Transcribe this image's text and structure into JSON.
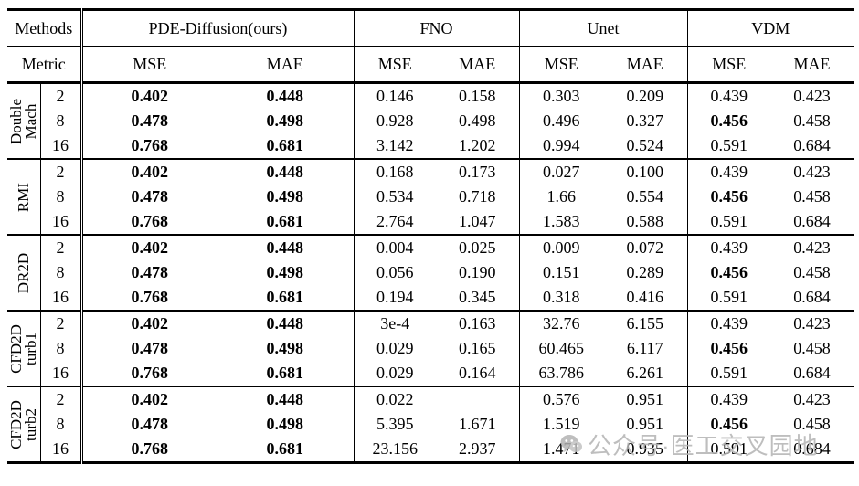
{
  "watermark": {
    "text": "公众号·医工交叉园地",
    "color": "#b3b3b3",
    "icon": "wechat-icon"
  },
  "table": {
    "header": {
      "methods_label": "Methods",
      "metric_label": "Metric",
      "method_groups": [
        {
          "name": "PDE-Diffusion(ours)"
        },
        {
          "name": "FNO"
        },
        {
          "name": "Unet"
        },
        {
          "name": "VDM"
        }
      ],
      "metric_cols": [
        "MSE",
        "MAE"
      ]
    },
    "groups": [
      {
        "id": "double-mach",
        "label_lines": [
          "Double",
          "Mach"
        ],
        "rows": [
          {
            "k": "2",
            "cells": [
              {
                "v": "0.402",
                "b": true
              },
              {
                "v": "0.448",
                "b": true
              },
              {
                "v": "0.146",
                "b": false
              },
              {
                "v": "0.158",
                "b": false
              },
              {
                "v": "0.303",
                "b": false
              },
              {
                "v": "0.209",
                "b": false
              },
              {
                "v": "0.439",
                "b": false
              },
              {
                "v": "0.423",
                "b": false
              }
            ]
          },
          {
            "k": "8",
            "cells": [
              {
                "v": "0.478",
                "b": true
              },
              {
                "v": "0.498",
                "b": true
              },
              {
                "v": "0.928",
                "b": false
              },
              {
                "v": "0.498",
                "b": false
              },
              {
                "v": "0.496",
                "b": false
              },
              {
                "v": "0.327",
                "b": false
              },
              {
                "v": "0.456",
                "b": true
              },
              {
                "v": "0.458",
                "b": false
              }
            ]
          },
          {
            "k": "16",
            "cells": [
              {
                "v": "0.768",
                "b": true
              },
              {
                "v": "0.681",
                "b": true
              },
              {
                "v": "3.142",
                "b": false
              },
              {
                "v": "1.202",
                "b": false
              },
              {
                "v": "0.994",
                "b": false
              },
              {
                "v": "0.524",
                "b": false
              },
              {
                "v": "0.591",
                "b": false
              },
              {
                "v": "0.684",
                "b": false
              }
            ]
          }
        ]
      },
      {
        "id": "rmi",
        "label_lines": [
          "RMI"
        ],
        "rows": [
          {
            "k": "2",
            "cells": [
              {
                "v": "0.402",
                "b": true
              },
              {
                "v": "0.448",
                "b": true
              },
              {
                "v": "0.168",
                "b": false
              },
              {
                "v": "0.173",
                "b": false
              },
              {
                "v": "0.027",
                "b": false
              },
              {
                "v": "0.100",
                "b": false
              },
              {
                "v": "0.439",
                "b": false
              },
              {
                "v": "0.423",
                "b": false
              }
            ]
          },
          {
            "k": "8",
            "cells": [
              {
                "v": "0.478",
                "b": true
              },
              {
                "v": "0.498",
                "b": true
              },
              {
                "v": "0.534",
                "b": false
              },
              {
                "v": "0.718",
                "b": false
              },
              {
                "v": "1.66",
                "b": false
              },
              {
                "v": "0.554",
                "b": false
              },
              {
                "v": "0.456",
                "b": true
              },
              {
                "v": "0.458",
                "b": false
              }
            ]
          },
          {
            "k": "16",
            "cells": [
              {
                "v": "0.768",
                "b": true
              },
              {
                "v": "0.681",
                "b": true
              },
              {
                "v": "2.764",
                "b": false
              },
              {
                "v": "1.047",
                "b": false
              },
              {
                "v": "1.583",
                "b": false
              },
              {
                "v": "0.588",
                "b": false
              },
              {
                "v": "0.591",
                "b": false
              },
              {
                "v": "0.684",
                "b": false
              }
            ]
          }
        ]
      },
      {
        "id": "dr2d",
        "label_lines": [
          "DR2D"
        ],
        "rows": [
          {
            "k": "2",
            "cells": [
              {
                "v": "0.402",
                "b": true
              },
              {
                "v": "0.448",
                "b": true
              },
              {
                "v": "0.004",
                "b": false
              },
              {
                "v": "0.025",
                "b": false
              },
              {
                "v": "0.009",
                "b": false
              },
              {
                "v": "0.072",
                "b": false
              },
              {
                "v": "0.439",
                "b": false
              },
              {
                "v": "0.423",
                "b": false
              }
            ]
          },
          {
            "k": "8",
            "cells": [
              {
                "v": "0.478",
                "b": true
              },
              {
                "v": "0.498",
                "b": true
              },
              {
                "v": "0.056",
                "b": false
              },
              {
                "v": "0.190",
                "b": false
              },
              {
                "v": "0.151",
                "b": false
              },
              {
                "v": "0.289",
                "b": false
              },
              {
                "v": "0.456",
                "b": true
              },
              {
                "v": "0.458",
                "b": false
              }
            ]
          },
          {
            "k": "16",
            "cells": [
              {
                "v": "0.768",
                "b": true
              },
              {
                "v": "0.681",
                "b": true
              },
              {
                "v": "0.194",
                "b": false
              },
              {
                "v": "0.345",
                "b": false
              },
              {
                "v": "0.318",
                "b": false
              },
              {
                "v": "0.416",
                "b": false
              },
              {
                "v": "0.591",
                "b": false
              },
              {
                "v": "0.684",
                "b": false
              }
            ]
          }
        ]
      },
      {
        "id": "cfd2d-turb1",
        "label_lines": [
          "CFD2D",
          "turb1"
        ],
        "rows": [
          {
            "k": "2",
            "cells": [
              {
                "v": "0.402",
                "b": true
              },
              {
                "v": "0.448",
                "b": true
              },
              {
                "v": "3e-4",
                "b": false
              },
              {
                "v": "0.163",
                "b": false
              },
              {
                "v": "32.76",
                "b": false
              },
              {
                "v": "6.155",
                "b": false
              },
              {
                "v": "0.439",
                "b": false
              },
              {
                "v": "0.423",
                "b": false
              }
            ]
          },
          {
            "k": "8",
            "cells": [
              {
                "v": "0.478",
                "b": true
              },
              {
                "v": "0.498",
                "b": true
              },
              {
                "v": "0.029",
                "b": false
              },
              {
                "v": "0.165",
                "b": false
              },
              {
                "v": "60.465",
                "b": false
              },
              {
                "v": "6.117",
                "b": false
              },
              {
                "v": "0.456",
                "b": true
              },
              {
                "v": "0.458",
                "b": false
              }
            ]
          },
          {
            "k": "16",
            "cells": [
              {
                "v": "0.768",
                "b": true
              },
              {
                "v": "0.681",
                "b": true
              },
              {
                "v": "0.029",
                "b": false
              },
              {
                "v": "0.164",
                "b": false
              },
              {
                "v": "63.786",
                "b": false
              },
              {
                "v": "6.261",
                "b": false
              },
              {
                "v": "0.591",
                "b": false
              },
              {
                "v": "0.684",
                "b": false
              }
            ]
          }
        ]
      },
      {
        "id": "cfd2d-turb2",
        "label_lines": [
          "CFD2D",
          "turb2"
        ],
        "rows": [
          {
            "k": "2",
            "cells": [
              {
                "v": "0.402",
                "b": true
              },
              {
                "v": "0.448",
                "b": true
              },
              {
                "v": "0.022",
                "b": false
              },
              {
                "v": "",
                "b": false
              },
              {
                "v": "0.576",
                "b": false
              },
              {
                "v": "0.951",
                "b": false
              },
              {
                "v": "0.439",
                "b": false
              },
              {
                "v": "0.423",
                "b": false
              }
            ]
          },
          {
            "k": "8",
            "cells": [
              {
                "v": "0.478",
                "b": true
              },
              {
                "v": "0.498",
                "b": true
              },
              {
                "v": "5.395",
                "b": false
              },
              {
                "v": "1.671",
                "b": false
              },
              {
                "v": "1.519",
                "b": false
              },
              {
                "v": "0.951",
                "b": false
              },
              {
                "v": "0.456",
                "b": true
              },
              {
                "v": "0.458",
                "b": false
              }
            ]
          },
          {
            "k": "16",
            "cells": [
              {
                "v": "0.768",
                "b": true
              },
              {
                "v": "0.681",
                "b": true
              },
              {
                "v": "23.156",
                "b": false
              },
              {
                "v": "2.937",
                "b": false
              },
              {
                "v": "1.471",
                "b": false
              },
              {
                "v": "0.935",
                "b": false
              },
              {
                "v": "0.591",
                "b": false
              },
              {
                "v": "0.684",
                "b": false
              }
            ]
          }
        ]
      }
    ]
  }
}
